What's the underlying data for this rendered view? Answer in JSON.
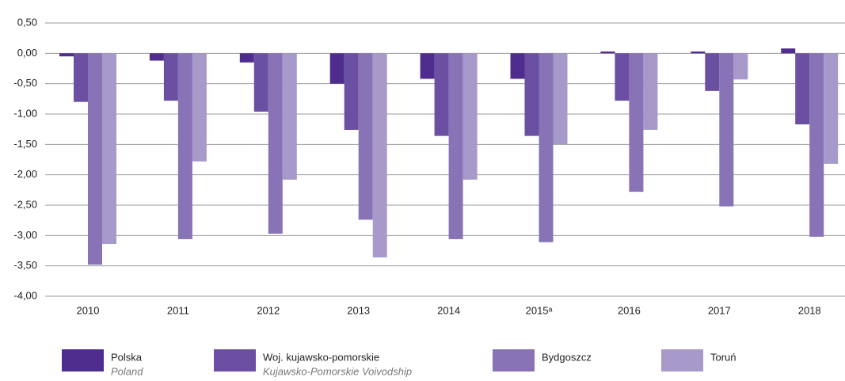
{
  "chart_data": {
    "type": "bar",
    "categories": [
      "2010",
      "2011",
      "2012",
      "2013",
      "2014",
      "2015ᵃ",
      "2016",
      "2017",
      "2018"
    ],
    "series": [
      {
        "name": "Polska",
        "name_en": "Poland",
        "color": "#4f2d8f",
        "values": [
          -0.05,
          -0.12,
          -0.15,
          -0.5,
          -0.42,
          -0.42,
          0.03,
          0.03,
          0.08
        ]
      },
      {
        "name": "Woj. kujawsko-pomorskie",
        "name_en": "Kujawsko-Pomorskie Voivodship",
        "color": "#6b4fa3",
        "values": [
          -0.8,
          -0.78,
          -0.96,
          -1.26,
          -1.36,
          -1.36,
          -0.78,
          -0.62,
          -1.17
        ]
      },
      {
        "name": "Bydgoszcz",
        "color": "#8873b6",
        "values": [
          -3.48,
          -3.06,
          -2.97,
          -2.74,
          -3.06,
          -3.11,
          -2.28,
          -2.52,
          -3.02
        ]
      },
      {
        "name": "Toruń",
        "color": "#a899cb",
        "values": [
          -3.14,
          -1.78,
          -2.08,
          -3.36,
          -2.08,
          -1.5,
          -1.26,
          -0.43,
          -1.82
        ]
      }
    ],
    "ylim": [
      -4,
      0.5
    ],
    "yticks": [
      {
        "value": 0.5,
        "label": "0,50"
      },
      {
        "value": 0,
        "label": "0,00"
      },
      {
        "value": -0.5,
        "label": "-0,50"
      },
      {
        "value": -1,
        "label": "-1,00"
      },
      {
        "value": -1.5,
        "label": "-1,50"
      },
      {
        "value": -2,
        "label": "-2,00"
      },
      {
        "value": -2.5,
        "label": "-2,50"
      },
      {
        "value": -3,
        "label": "-3,00"
      },
      {
        "value": -3.5,
        "label": "-3,50"
      },
      {
        "value": -4,
        "label": "-4,00"
      }
    ],
    "grid": true,
    "legend": "bottom"
  }
}
